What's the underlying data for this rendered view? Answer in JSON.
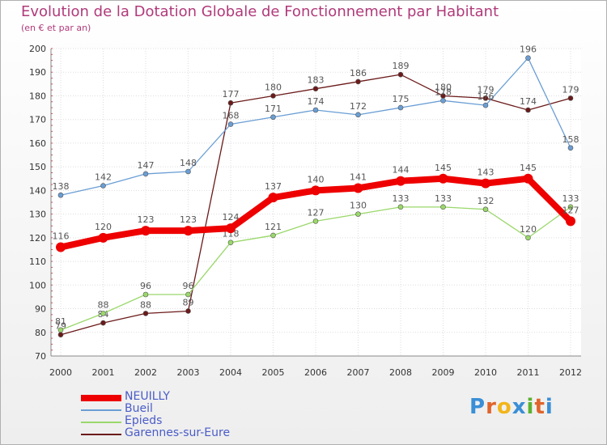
{
  "header": {
    "title": "Evolution de la Dotation Globale de Fonctionnement par Habitant",
    "subtitle": "(en € et par an)"
  },
  "brand": {
    "logo_letters": [
      "P",
      "r",
      "o",
      "x",
      "i",
      "t",
      "i"
    ],
    "logo_colors": [
      "#3a8fd6",
      "#e0642a",
      "#f2b51a",
      "#3a8fd6",
      "#5bb12f",
      "#e0642a",
      "#3a8fd6"
    ]
  },
  "chart_data": {
    "type": "line",
    "title": "Evolution de la Dotation Globale de Fonctionnement par Habitant",
    "subtitle": "(en € et par an)",
    "xlabel": "",
    "ylabel": "",
    "ylim": [
      70,
      200
    ],
    "yticks": [
      70,
      80,
      90,
      100,
      110,
      120,
      130,
      140,
      150,
      160,
      170,
      180,
      190,
      200
    ],
    "grid": true,
    "legend_position": "bottom-left",
    "categories": [
      "2000",
      "2001",
      "2002",
      "2003",
      "2004",
      "2005",
      "2006",
      "2007",
      "2008",
      "2009",
      "2010",
      "2011",
      "2012"
    ],
    "series": [
      {
        "name": "Garennes-sur-Eure",
        "color": "#6b1a1a",
        "values": [
          79,
          84,
          88,
          89,
          177,
          180,
          183,
          186,
          189,
          180,
          179,
          174,
          179
        ],
        "labels": [
          "79",
          "84",
          "88",
          "89",
          "177",
          "180",
          "183",
          "186",
          "189",
          "180",
          "179",
          "174",
          "179"
        ]
      },
      {
        "name": "Epieds",
        "color": "#9ad86a",
        "values": [
          81,
          88,
          96,
          96,
          118,
          121,
          127,
          130,
          133,
          133,
          132,
          120,
          133
        ],
        "labels": [
          "81",
          "88",
          "96",
          "96",
          "118",
          "121",
          "127",
          "130",
          "133",
          "133",
          "132",
          "120",
          "133"
        ]
      },
      {
        "name": "Bueil",
        "color": "#6a9ed4",
        "values": [
          138,
          142,
          147,
          148,
          168,
          171,
          174,
          172,
          175,
          178,
          176,
          196,
          158
        ],
        "labels": [
          "138",
          "142",
          "147",
          "148",
          "168",
          "171",
          "174",
          "172",
          "175",
          "178",
          "176",
          "196",
          "158"
        ]
      },
      {
        "name": "NEUILLY",
        "color": "#ee0000",
        "values": [
          116,
          120,
          123,
          123,
          124,
          137,
          140,
          141,
          144,
          145,
          143,
          145,
          127
        ],
        "labels": [
          "116",
          "120",
          "123",
          "123",
          "124",
          "137",
          "140",
          "141",
          "144",
          "145",
          "143",
          "145",
          "127"
        ]
      }
    ],
    "legend": [
      "NEUILLY",
      "Bueil",
      "Epieds",
      "Garennes-sur-Eure"
    ]
  }
}
